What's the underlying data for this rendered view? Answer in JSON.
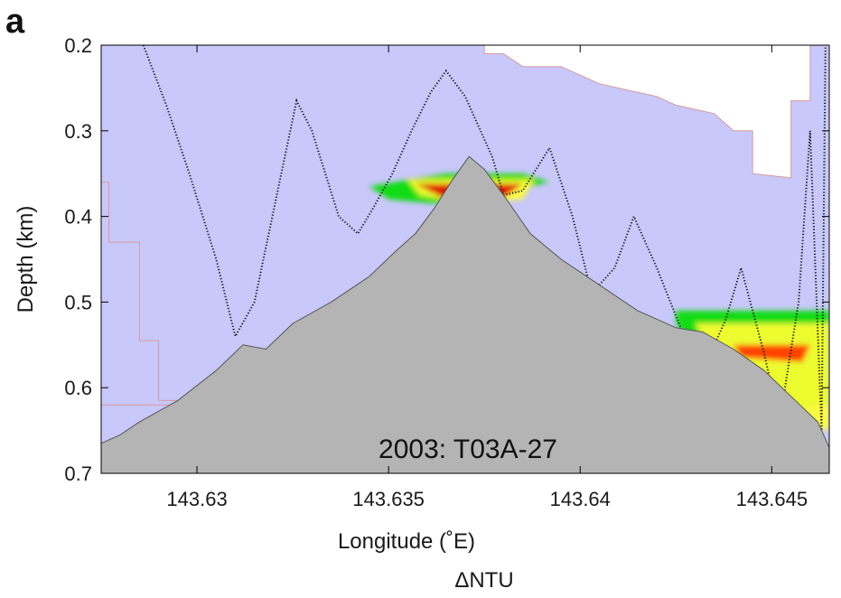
{
  "panel_label": "a",
  "chart_data": {
    "type": "heatmap",
    "title": "",
    "xlabel": "Longitude (˚E)",
    "ylabel": "Depth (km)",
    "colorbar_label": "ΔNTU",
    "annotation": "2003: T03A-27",
    "xlim": [
      143.6275,
      143.6465
    ],
    "ylim": [
      0.2,
      0.7
    ],
    "y_inverted": true,
    "x_ticks": [
      {
        "value": 143.63,
        "label": "143.63"
      },
      {
        "value": 143.635,
        "label": "143.635"
      },
      {
        "value": 143.64,
        "label": "143.64"
      },
      {
        "value": 143.645,
        "label": "143.645"
      }
    ],
    "y_ticks": [
      {
        "value": 0.2,
        "label": "0.2"
      },
      {
        "value": 0.3,
        "label": "0.3"
      },
      {
        "value": 0.4,
        "label": "0.4"
      },
      {
        "value": 0.5,
        "label": "0.5"
      },
      {
        "value": 0.6,
        "label": "0.6"
      },
      {
        "value": 0.7,
        "label": "0.7"
      }
    ],
    "colors": {
      "background_field": "#c8c8fa",
      "field_edge": "#d99a9a",
      "seafloor": "#b4b4b4",
      "scale": [
        "#8e8ef6",
        "#00dd00",
        "#ffff33",
        "#ff3300",
        "#dd0000"
      ]
    },
    "data_region_outline": [
      [
        143.6275,
        0.2
      ],
      [
        143.6375,
        0.2
      ],
      [
        143.6375,
        0.21
      ],
      [
        143.638,
        0.21
      ],
      [
        143.6385,
        0.225
      ],
      [
        143.6395,
        0.225
      ],
      [
        143.6405,
        0.245
      ],
      [
        143.642,
        0.26
      ],
      [
        143.6425,
        0.27
      ],
      [
        143.6435,
        0.28
      ],
      [
        143.644,
        0.3
      ],
      [
        143.6445,
        0.3
      ],
      [
        143.6445,
        0.35
      ],
      [
        143.6455,
        0.355
      ],
      [
        143.6455,
        0.265
      ],
      [
        143.646,
        0.265
      ],
      [
        143.646,
        0.2
      ],
      [
        143.6465,
        0.2
      ],
      [
        143.6465,
        0.7
      ],
      [
        143.6275,
        0.7
      ],
      [
        143.6275,
        0.36
      ],
      [
        143.6277,
        0.36
      ],
      [
        143.6277,
        0.43
      ],
      [
        143.6285,
        0.43
      ],
      [
        143.6285,
        0.545
      ],
      [
        143.629,
        0.545
      ],
      [
        143.629,
        0.615
      ],
      [
        143.6295,
        0.615
      ],
      [
        143.6295,
        0.62
      ],
      [
        143.6275,
        0.62
      ]
    ],
    "bathymetry": [
      [
        143.6275,
        0.665
      ],
      [
        143.628,
        0.655
      ],
      [
        143.6285,
        0.64
      ],
      [
        143.6295,
        0.615
      ],
      [
        143.6305,
        0.58
      ],
      [
        143.6312,
        0.55
      ],
      [
        143.6318,
        0.555
      ],
      [
        143.6325,
        0.525
      ],
      [
        143.6335,
        0.5
      ],
      [
        143.6345,
        0.47
      ],
      [
        143.6352,
        0.44
      ],
      [
        143.6357,
        0.42
      ],
      [
        143.6362,
        0.39
      ],
      [
        143.6367,
        0.355
      ],
      [
        143.6371,
        0.33
      ],
      [
        143.6375,
        0.345
      ],
      [
        143.638,
        0.375
      ],
      [
        143.6387,
        0.42
      ],
      [
        143.6395,
        0.45
      ],
      [
        143.6405,
        0.48
      ],
      [
        143.6415,
        0.51
      ],
      [
        143.6425,
        0.53
      ],
      [
        143.6432,
        0.535
      ],
      [
        143.644,
        0.555
      ],
      [
        143.6448,
        0.58
      ],
      [
        143.6455,
        0.61
      ],
      [
        143.6462,
        0.64
      ],
      [
        143.6465,
        0.67
      ],
      [
        143.6465,
        0.7
      ],
      [
        143.6275,
        0.7
      ]
    ],
    "turbidity_plumes": [
      {
        "level": 1,
        "points": [
          [
            143.6365,
            0.35
          ],
          [
            143.6385,
            0.35
          ],
          [
            143.6392,
            0.36
          ],
          [
            143.6375,
            0.375
          ],
          [
            143.6362,
            0.385
          ],
          [
            143.635,
            0.38
          ],
          [
            143.6345,
            0.365
          ]
        ]
      },
      {
        "level": 2,
        "points": [
          [
            143.6355,
            0.357
          ],
          [
            143.6388,
            0.357
          ],
          [
            143.6385,
            0.38
          ],
          [
            143.637,
            0.385
          ],
          [
            143.6358,
            0.375
          ]
        ]
      },
      {
        "level": 4,
        "points": [
          [
            143.6357,
            0.362
          ],
          [
            143.6385,
            0.362
          ],
          [
            143.638,
            0.378
          ],
          [
            143.6365,
            0.38
          ]
        ]
      },
      {
        "level": 1,
        "points": [
          [
            143.6425,
            0.51
          ],
          [
            143.6465,
            0.51
          ],
          [
            143.6465,
            0.62
          ],
          [
            143.645,
            0.63
          ],
          [
            143.644,
            0.6
          ],
          [
            143.643,
            0.555
          ],
          [
            143.6425,
            0.525
          ]
        ]
      },
      {
        "level": 2,
        "points": [
          [
            143.643,
            0.525
          ],
          [
            143.6465,
            0.525
          ],
          [
            143.6465,
            0.65
          ],
          [
            143.6455,
            0.64
          ],
          [
            143.6445,
            0.61
          ],
          [
            143.6435,
            0.565
          ]
        ]
      },
      {
        "level": 3,
        "points": [
          [
            143.644,
            0.55
          ],
          [
            143.646,
            0.55
          ],
          [
            143.6458,
            0.57
          ],
          [
            143.6442,
            0.565
          ]
        ]
      }
    ],
    "tow_track": [
      [
        143.6286,
        0.2
      ],
      [
        143.6292,
        0.27
      ],
      [
        143.6298,
        0.35
      ],
      [
        143.6305,
        0.45
      ],
      [
        143.631,
        0.54
      ],
      [
        143.6315,
        0.5
      ],
      [
        143.6322,
        0.35
      ],
      [
        143.6326,
        0.265
      ],
      [
        143.633,
        0.3
      ],
      [
        143.6337,
        0.4
      ],
      [
        143.6342,
        0.42
      ],
      [
        143.6346,
        0.39
      ],
      [
        143.6351,
        0.35
      ],
      [
        143.6356,
        0.3
      ],
      [
        143.6361,
        0.255
      ],
      [
        143.6365,
        0.23
      ],
      [
        143.637,
        0.26
      ],
      [
        143.6377,
        0.33
      ],
      [
        143.638,
        0.375
      ],
      [
        143.6385,
        0.37
      ],
      [
        143.6392,
        0.32
      ],
      [
        143.6398,
        0.4
      ],
      [
        143.6403,
        0.49
      ],
      [
        143.6409,
        0.46
      ],
      [
        143.6414,
        0.4
      ],
      [
        143.642,
        0.46
      ],
      [
        143.6428,
        0.55
      ],
      [
        143.6433,
        0.57
      ],
      [
        143.6438,
        0.52
      ],
      [
        143.6442,
        0.46
      ],
      [
        143.6448,
        0.56
      ],
      [
        143.6452,
        0.64
      ],
      [
        143.6457,
        0.5
      ],
      [
        143.646,
        0.3
      ],
      [
        143.6463,
        0.65
      ],
      [
        143.6464,
        0.2
      ]
    ]
  }
}
